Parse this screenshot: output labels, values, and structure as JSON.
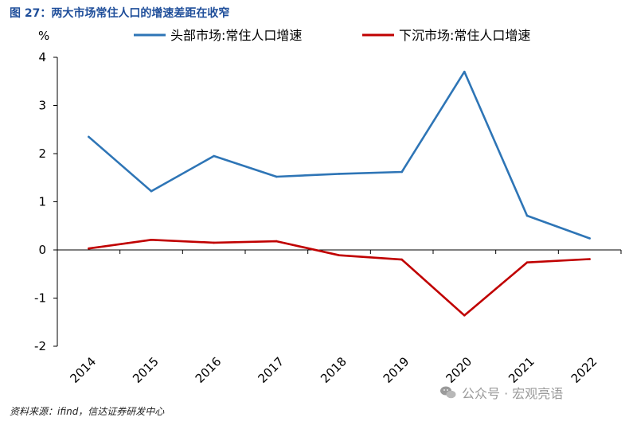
{
  "figure": {
    "title": "图 27：两大市场常住人口的增速差距在收窄",
    "source": "资料来源：ifind，信达证券研发中心",
    "watermark": "公众号 · 宏观亮语"
  },
  "chart_data": {
    "type": "line",
    "title": "",
    "ylabel": "%",
    "xlabel": "",
    "x": [
      "2014",
      "2015",
      "2016",
      "2017",
      "2018",
      "2019",
      "2020",
      "2021",
      "2022"
    ],
    "ylim": [
      -2,
      4
    ],
    "yticks": [
      -2,
      -1,
      0,
      1,
      2,
      3,
      4
    ],
    "grid": false,
    "legend_position": "top",
    "series": [
      {
        "name": "头部市场:常住人口增速",
        "color": "#2e75b6",
        "values": [
          2.35,
          1.22,
          1.95,
          1.52,
          1.58,
          1.62,
          3.7,
          0.71,
          0.24
        ]
      },
      {
        "name": "下沉市场:常住人口增速",
        "color": "#c00000",
        "values": [
          0.03,
          0.21,
          0.15,
          0.18,
          -0.11,
          -0.2,
          -1.36,
          -0.26,
          -0.19
        ]
      }
    ]
  }
}
